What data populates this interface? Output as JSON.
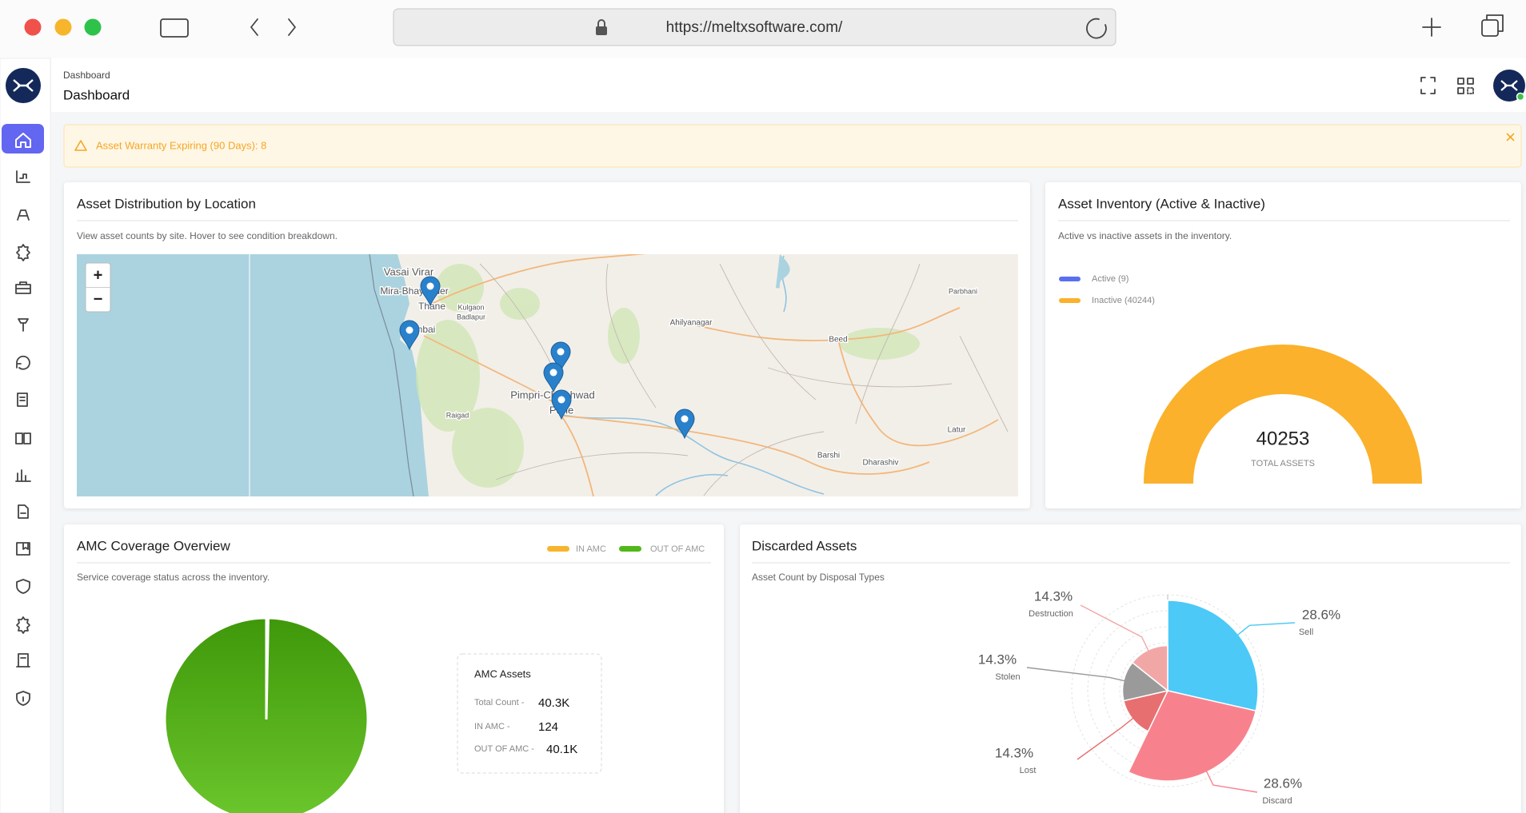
{
  "browser": {
    "url": "https://meltxsoftware.com/"
  },
  "header": {
    "breadcrumb": "Dashboard",
    "title": "Dashboard"
  },
  "alert": {
    "text": "Asset Warranty Expiring (90 Days): 8"
  },
  "map_card": {
    "title": "Asset Distribution by Location",
    "subtitle": "View asset counts by site. Hover to see condition breakdown.",
    "zoom_in": "+",
    "zoom_out": "−",
    "places": [
      "Vasai Virar",
      "Mira-Bhayander",
      "Thane",
      "Mumbai",
      "Kulgaon",
      "Badlapur",
      "Pimpri-Chinchwad",
      "Pune",
      "Raigad",
      "Ahilyanagar",
      "Beed",
      "Parbhani",
      "Latur",
      "Barshi",
      "Dharashiv"
    ]
  },
  "inventory_card": {
    "title": "Asset Inventory (Active & Inactive)",
    "subtitle": "Active vs inactive assets in the inventory.",
    "chart": {
      "type": "gauge",
      "categories": [
        "Active (9)",
        "Inactive (40244)"
      ],
      "values": [
        9,
        40244
      ],
      "colors": [
        "#5a6ff0",
        "#fbb12b"
      ],
      "total": 40253,
      "total_label": "TOTAL ASSETS"
    }
  },
  "amc_card": {
    "title": "AMC Coverage Overview",
    "subtitle": "Service coverage status across the inventory.",
    "chart": {
      "type": "pie",
      "categories": [
        "IN AMC",
        "OUT OF AMC"
      ],
      "values": [
        124,
        40100
      ],
      "value_labels": [
        "124",
        "40.1K"
      ],
      "colors": [
        "#f7b52c",
        "#52b81a"
      ]
    },
    "tooltip": {
      "title": "AMC Assets",
      "total_label": "Total Count -",
      "total": "40.3K",
      "row_labels": [
        "IN AMC -",
        "OUT OF AMC -"
      ]
    }
  },
  "discarded_card": {
    "title": "Discarded Assets",
    "subtitle": "Asset Count by Disposal Types",
    "chart": {
      "type": "rose",
      "categories": [
        "Sell",
        "Discard",
        "Lost",
        "Stolen",
        "Destruction"
      ],
      "values": [
        28.6,
        28.6,
        14.3,
        14.3,
        14.3
      ],
      "value_labels": [
        "28.6%",
        "28.6%",
        "14.3%",
        "14.3%",
        "14.3%"
      ],
      "colors": [
        "#4cc9f6",
        "#f7828e",
        "#e86f6f",
        "#9a9a9a",
        "#f2a7a7"
      ]
    }
  }
}
